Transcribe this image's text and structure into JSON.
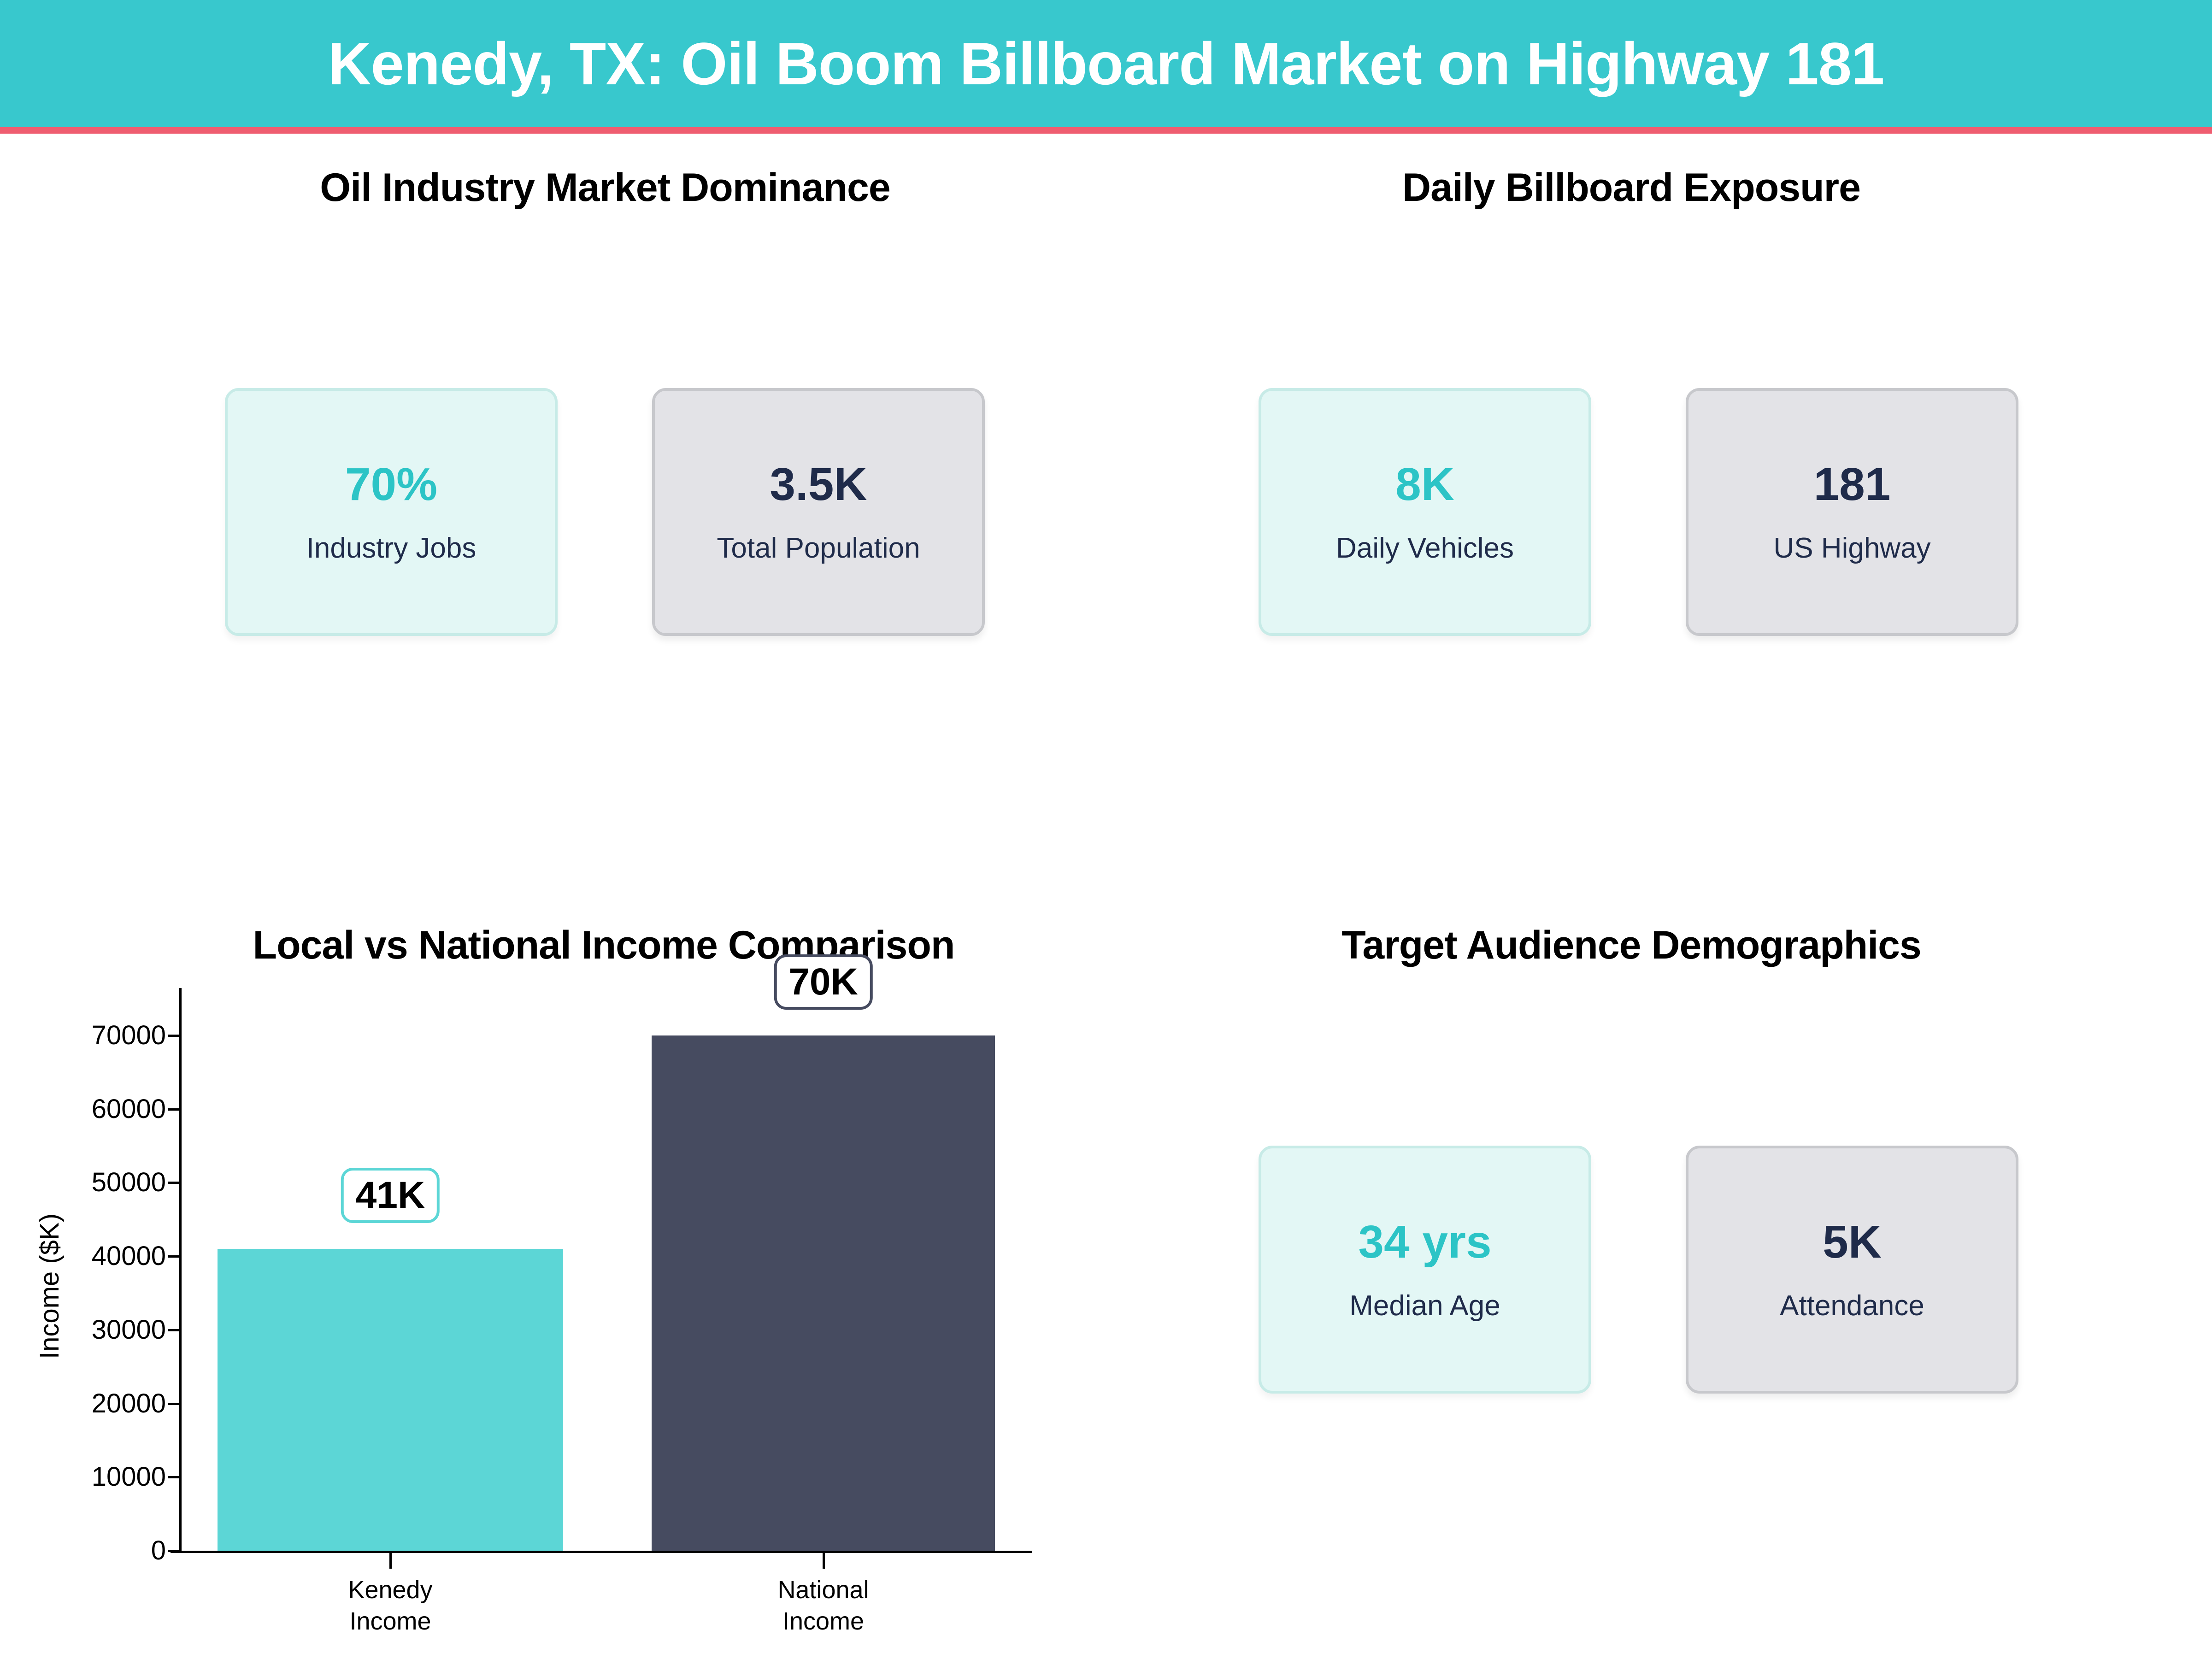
{
  "header": {
    "title": "Kenedy, TX: Oil Boom Billboard Market on Highway 181",
    "background_color": "#38c8cd",
    "underline_color": "#ef5d70"
  },
  "panels": [
    {
      "title": "Oil Industry Market Dominance",
      "cards": [
        {
          "value": "70%",
          "label": "Industry Jobs",
          "variant": "teal"
        },
        {
          "value": "3.5K",
          "label": "Total Population",
          "variant": "gray"
        }
      ]
    },
    {
      "title": "Daily Billboard Exposure",
      "cards": [
        {
          "value": "8K",
          "label": "Daily Vehicles",
          "variant": "teal"
        },
        {
          "value": "181",
          "label": "US Highway",
          "variant": "gray"
        }
      ]
    },
    {
      "title": "Target Audience Demographics",
      "cards": [
        {
          "value": "34 yrs",
          "label": "Median Age",
          "variant": "teal"
        },
        {
          "value": "5K",
          "label": "Attendance",
          "variant": "gray"
        }
      ]
    }
  ],
  "colors": {
    "accent_teal": "#2cc4c6",
    "navy_text": "#1f2b4a",
    "card_teal_bg": "#e3f7f5",
    "card_teal_border": "#c7ebe7",
    "card_gray_bg": "#e3e3e7",
    "card_gray_border": "#c7c8cc"
  },
  "chart_data": {
    "type": "bar",
    "title": "Local vs National Income Comparison",
    "categories": [
      [
        "Kenedy",
        "Income"
      ],
      [
        "National",
        "Income"
      ]
    ],
    "values": [
      41000,
      70000
    ],
    "bar_labels": [
      "41K",
      "70K"
    ],
    "bar_colors": [
      "#5cd6d6",
      "#464b60"
    ],
    "ylabel": "Income ($K)",
    "xlabel": "",
    "ylim": [
      0,
      73500
    ],
    "yticks": [
      0,
      10000,
      20000,
      30000,
      40000,
      50000,
      60000,
      70000
    ],
    "grid": false,
    "legend": false
  }
}
